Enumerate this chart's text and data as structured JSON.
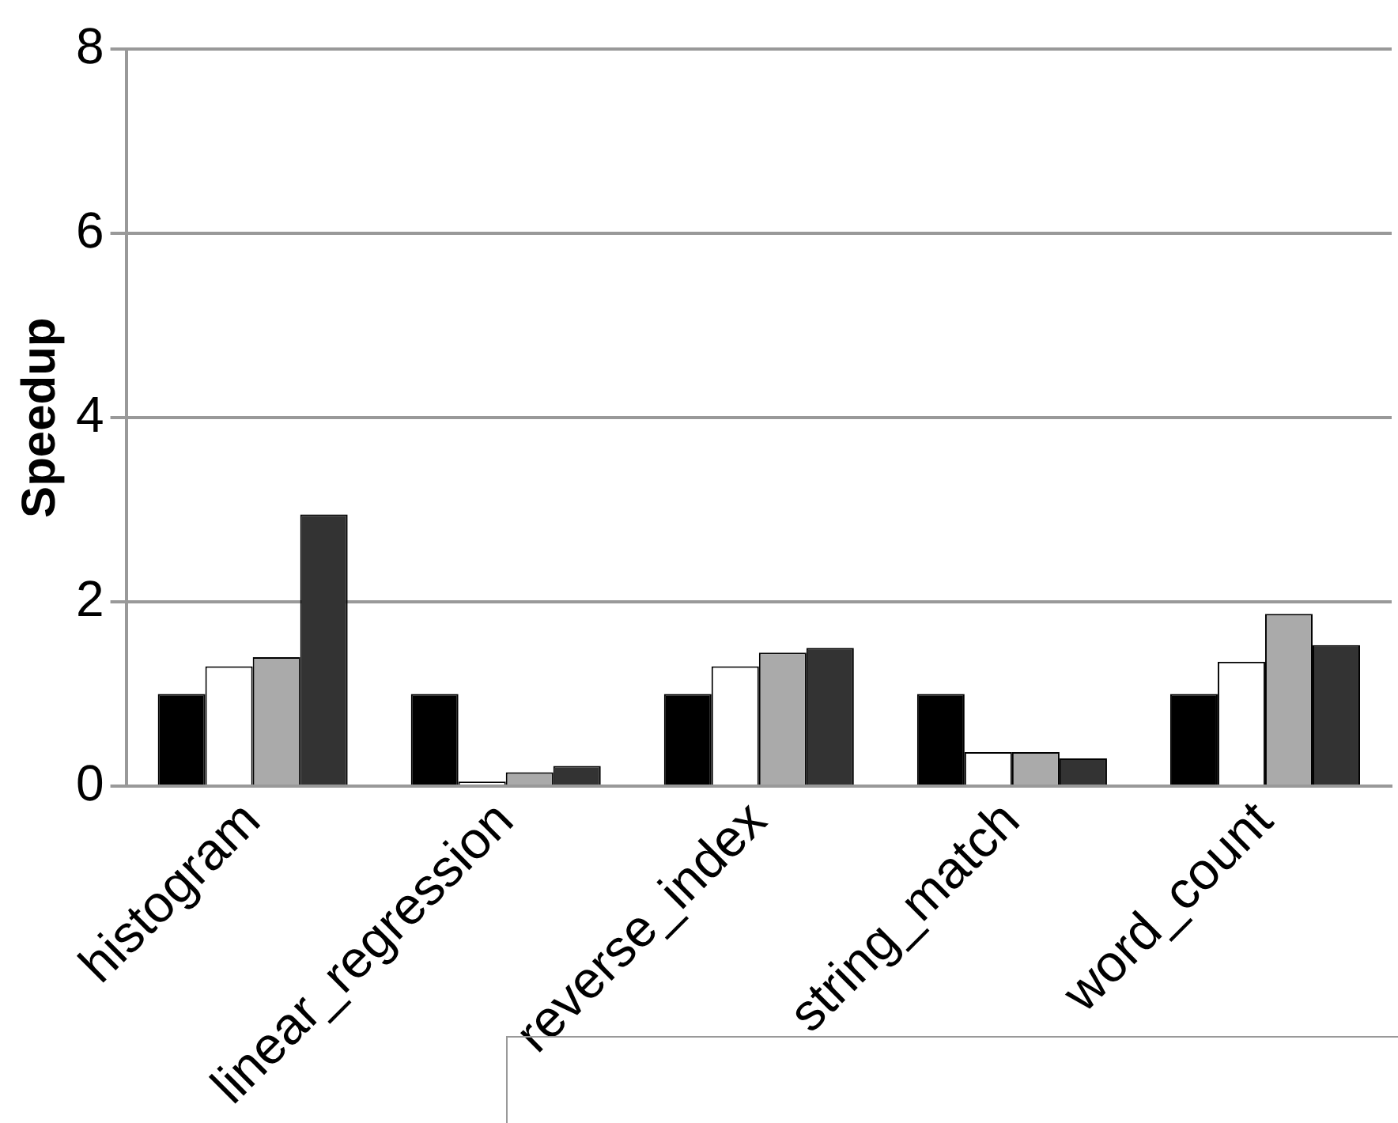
{
  "chart_data": {
    "type": "bar",
    "ylabel": "Speedup",
    "categories": [
      "histogram",
      "linear_regression",
      "reverse_index",
      "string_match",
      "word_count"
    ],
    "series": [
      {
        "color": "#000000",
        "values": [
          1.0,
          1.0,
          1.0,
          1.0,
          1.0
        ]
      },
      {
        "color": "#ffffff",
        "values": [
          1.3,
          0.05,
          1.3,
          0.37,
          1.35
        ]
      },
      {
        "color": "#aaaaaa",
        "values": [
          1.4,
          0.15,
          1.45,
          0.37,
          1.87
        ]
      },
      {
        "color": "#333333",
        "values": [
          2.95,
          0.22,
          1.5,
          0.3,
          1.53
        ]
      }
    ],
    "ylim": [
      0,
      8
    ],
    "yticks": [
      0,
      2,
      4,
      6,
      8
    ],
    "grid": "y"
  }
}
